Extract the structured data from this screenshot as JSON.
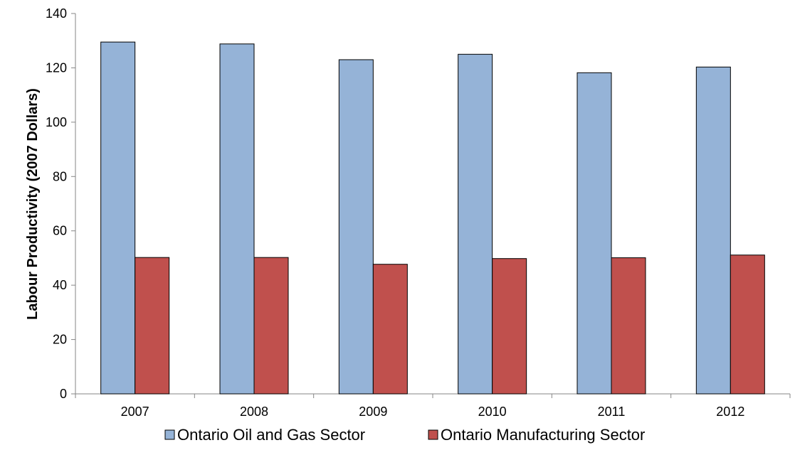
{
  "chart_data": {
    "type": "bar",
    "ylabel": "Labour Productivity (2007 Dollars)",
    "xlabel": "",
    "ylim": [
      0,
      140
    ],
    "yticks": [
      0,
      20,
      40,
      60,
      80,
      100,
      120,
      140
    ],
    "ytick_labels": [
      "0",
      "20",
      "40",
      "60",
      "80",
      "100",
      "120",
      "140"
    ],
    "categories": [
      "2007",
      "2008",
      "2009",
      "2010",
      "2011",
      "2012"
    ],
    "grid": false,
    "legend_position": "bottom",
    "series": [
      {
        "name": "Ontario Oil and Gas Sector",
        "color": "#95B3D7",
        "values": [
          129.5,
          128.8,
          123.0,
          125.0,
          118.2,
          120.3
        ]
      },
      {
        "name": "Ontario Manufacturing Sector",
        "color": "#C0504D",
        "values": [
          50.2,
          50.2,
          47.7,
          49.8,
          50.1,
          51.1
        ]
      }
    ]
  }
}
